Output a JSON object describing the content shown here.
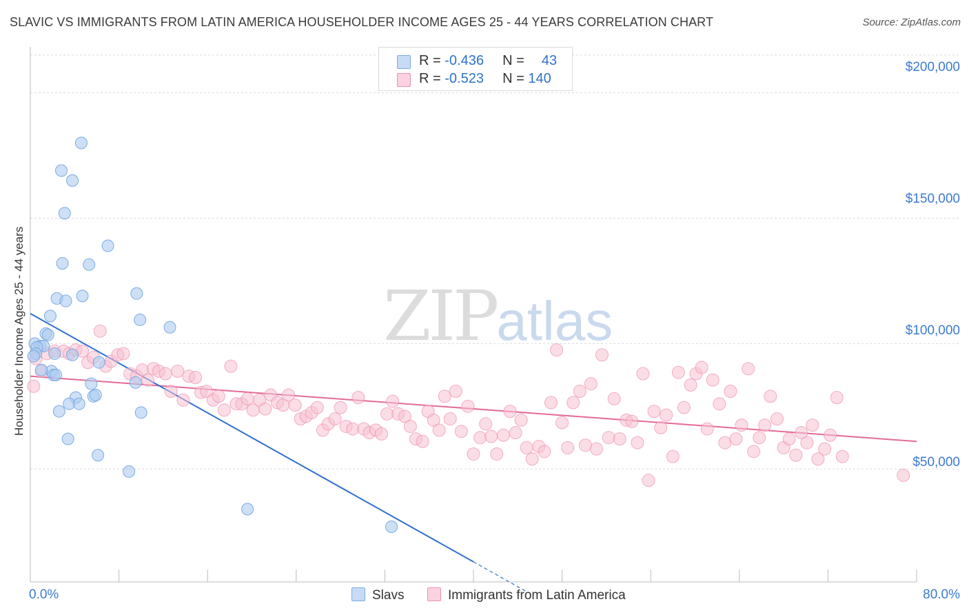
{
  "title": "SLAVIC VS IMMIGRANTS FROM LATIN AMERICA HOUSEHOLDER INCOME AGES 25 - 44 YEARS CORRELATION CHART",
  "source": "Source: ZipAtlas.com",
  "watermark": {
    "zip": "ZIP",
    "atlas": "atlas"
  },
  "legend": {
    "rows": [
      {
        "r_label": "R =",
        "r_value": "-0.436",
        "n_label": "N =",
        "n_value": "43",
        "color": "#aecbee"
      },
      {
        "r_label": "R =",
        "r_value": "-0.523",
        "n_label": "N =",
        "n_value": "140",
        "color": "#f8c1d1"
      }
    ]
  },
  "chart_data": {
    "type": "scatter",
    "title": "SLAVIC VS IMMIGRANTS FROM LATIN AMERICA HOUSEHOLDER INCOME AGES 25 - 44 YEARS CORRELATION CHART",
    "xlabel": "",
    "ylabel": "Householder Income Ages 25 - 44 years",
    "xlim": [
      0,
      80
    ],
    "ylim": [
      5000,
      215000
    ],
    "x_tick_labels": [
      "0.0%",
      "80.0%"
    ],
    "y_ticks": [
      50000,
      100000,
      150000,
      200000
    ],
    "y_tick_labels": [
      "$50,000",
      "$100,000",
      "$150,000",
      "$200,000"
    ],
    "grid": true,
    "legend_position": "top-center",
    "series": [
      {
        "name": "Slavs",
        "color": "#7aaae6",
        "fill": "#aecbee",
        "R": -0.436,
        "N": 43,
        "trend": {
          "x0": 0,
          "y0": 112000,
          "x1": 40,
          "y1": 13000,
          "dashed_to_x": 45
        },
        "points": [
          [
            4.6,
            180000
          ],
          [
            2.8,
            169000
          ],
          [
            3.8,
            165000
          ],
          [
            3.1,
            152000
          ],
          [
            7.0,
            139000
          ],
          [
            2.9,
            132000
          ],
          [
            5.3,
            131500
          ],
          [
            9.6,
            120000
          ],
          [
            4.7,
            119000
          ],
          [
            2.4,
            118000
          ],
          [
            3.2,
            117000
          ],
          [
            1.8,
            111000
          ],
          [
            9.9,
            109500
          ],
          [
            12.6,
            106500
          ],
          [
            1.4,
            104000
          ],
          [
            1.6,
            103500
          ],
          [
            0.4,
            100000
          ],
          [
            0.9,
            99000
          ],
          [
            1.2,
            99000
          ],
          [
            0.6,
            98500
          ],
          [
            0.5,
            96000
          ],
          [
            3.8,
            95500
          ],
          [
            1.9,
            89000
          ],
          [
            2.1,
            87500
          ],
          [
            2.3,
            87500
          ],
          [
            5.5,
            84000
          ],
          [
            9.5,
            84500
          ],
          [
            4.1,
            78500
          ],
          [
            5.7,
            79000
          ],
          [
            5.9,
            79500
          ],
          [
            3.5,
            76000
          ],
          [
            4.4,
            76000
          ],
          [
            2.6,
            73000
          ],
          [
            10.0,
            72500
          ],
          [
            3.4,
            62000
          ],
          [
            6.1,
            55500
          ],
          [
            8.9,
            49000
          ],
          [
            19.6,
            34000
          ],
          [
            32.6,
            27000
          ],
          [
            0.3,
            95000
          ],
          [
            2.2,
            96000
          ],
          [
            6.2,
            92500
          ],
          [
            1.0,
            89500
          ]
        ]
      },
      {
        "name": "Immigrants from Latin America",
        "color": "#ee8fae",
        "fill": "#f8c1d1",
        "R": -0.523,
        "N": 140,
        "trend": {
          "x0": 0,
          "y0": 87000,
          "x1": 80,
          "y1": 61000
        },
        "points": [
          [
            0.3,
            83000
          ],
          [
            0.5,
            94000
          ],
          [
            1.0,
            89000
          ],
          [
            1.5,
            96000
          ],
          [
            2.2,
            97000
          ],
          [
            3.0,
            97000
          ],
          [
            3.5,
            96000
          ],
          [
            4.1,
            97500
          ],
          [
            4.7,
            97000
          ],
          [
            5.2,
            92500
          ],
          [
            5.7,
            94500
          ],
          [
            6.3,
            105000
          ],
          [
            6.8,
            91000
          ],
          [
            7.3,
            93000
          ],
          [
            7.9,
            95500
          ],
          [
            8.4,
            96000
          ],
          [
            9.0,
            88000
          ],
          [
            9.6,
            87000
          ],
          [
            10.1,
            89500
          ],
          [
            10.6,
            85500
          ],
          [
            11.1,
            90000
          ],
          [
            11.6,
            89000
          ],
          [
            12.2,
            88000
          ],
          [
            12.7,
            81000
          ],
          [
            13.3,
            89000
          ],
          [
            13.8,
            77500
          ],
          [
            14.3,
            87000
          ],
          [
            14.9,
            86500
          ],
          [
            15.4,
            80500
          ],
          [
            15.9,
            81000
          ],
          [
            16.5,
            77500
          ],
          [
            17.0,
            79000
          ],
          [
            17.5,
            73500
          ],
          [
            18.1,
            91000
          ],
          [
            18.6,
            76000
          ],
          [
            19.1,
            76000
          ],
          [
            19.6,
            78000
          ],
          [
            20.1,
            73500
          ],
          [
            20.7,
            77500
          ],
          [
            21.2,
            74000
          ],
          [
            21.7,
            79500
          ],
          [
            22.3,
            76500
          ],
          [
            22.8,
            75500
          ],
          [
            23.3,
            79500
          ],
          [
            23.9,
            75500
          ],
          [
            24.4,
            70000
          ],
          [
            24.9,
            71000
          ],
          [
            25.4,
            72500
          ],
          [
            25.9,
            74500
          ],
          [
            26.4,
            65500
          ],
          [
            26.9,
            68000
          ],
          [
            27.5,
            70000
          ],
          [
            28.0,
            74500
          ],
          [
            28.5,
            67000
          ],
          [
            29.1,
            66000
          ],
          [
            29.6,
            78500
          ],
          [
            30.1,
            66000
          ],
          [
            30.6,
            64500
          ],
          [
            31.2,
            65500
          ],
          [
            31.7,
            64000
          ],
          [
            32.2,
            72000
          ],
          [
            32.7,
            77000
          ],
          [
            33.2,
            72000
          ],
          [
            33.8,
            71000
          ],
          [
            34.3,
            67000
          ],
          [
            34.8,
            62000
          ],
          [
            35.4,
            61000
          ],
          [
            35.9,
            73000
          ],
          [
            36.4,
            69500
          ],
          [
            36.9,
            65500
          ],
          [
            37.4,
            79000
          ],
          [
            37.9,
            70000
          ],
          [
            38.4,
            81000
          ],
          [
            38.9,
            65000
          ],
          [
            39.5,
            75000
          ],
          [
            40.0,
            56000
          ],
          [
            40.6,
            62500
          ],
          [
            41.1,
            68000
          ],
          [
            41.6,
            63000
          ],
          [
            42.1,
            56000
          ],
          [
            42.7,
            63500
          ],
          [
            43.3,
            73000
          ],
          [
            43.8,
            64500
          ],
          [
            44.3,
            69500
          ],
          [
            44.8,
            58500
          ],
          [
            45.3,
            54000
          ],
          [
            45.9,
            59000
          ],
          [
            46.4,
            57000
          ],
          [
            47.0,
            76500
          ],
          [
            47.5,
            97500
          ],
          [
            48.0,
            68500
          ],
          [
            48.5,
            58500
          ],
          [
            49.0,
            76500
          ],
          [
            49.6,
            81000
          ],
          [
            50.1,
            59500
          ],
          [
            50.6,
            84000
          ],
          [
            51.1,
            58000
          ],
          [
            51.6,
            95500
          ],
          [
            52.2,
            62500
          ],
          [
            52.7,
            78000
          ],
          [
            53.2,
            62000
          ],
          [
            53.8,
            69500
          ],
          [
            54.3,
            69000
          ],
          [
            54.8,
            60500
          ],
          [
            55.3,
            88000
          ],
          [
            55.8,
            45500
          ],
          [
            56.3,
            73000
          ],
          [
            56.9,
            66500
          ],
          [
            57.4,
            71500
          ],
          [
            58.0,
            55000
          ],
          [
            58.5,
            88500
          ],
          [
            59.0,
            74500
          ],
          [
            59.6,
            83500
          ],
          [
            60.1,
            88000
          ],
          [
            60.6,
            90500
          ],
          [
            61.1,
            66000
          ],
          [
            61.6,
            85500
          ],
          [
            62.2,
            76000
          ],
          [
            62.7,
            60500
          ],
          [
            63.2,
            81000
          ],
          [
            63.7,
            62000
          ],
          [
            64.2,
            67500
          ],
          [
            64.8,
            90000
          ],
          [
            65.3,
            57000
          ],
          [
            65.8,
            62500
          ],
          [
            66.3,
            67500
          ],
          [
            66.8,
            79000
          ],
          [
            67.4,
            70000
          ],
          [
            68.0,
            58500
          ],
          [
            68.5,
            62000
          ],
          [
            69.1,
            55500
          ],
          [
            69.6,
            64500
          ],
          [
            70.1,
            60500
          ],
          [
            70.6,
            67500
          ],
          [
            71.1,
            54000
          ],
          [
            71.7,
            58000
          ],
          [
            72.2,
            63500
          ],
          [
            72.8,
            78500
          ],
          [
            73.3,
            55000
          ],
          [
            78.8,
            47500
          ]
        ]
      }
    ]
  },
  "bottom_legend": [
    {
      "label": "Slavs",
      "color": "#aecbee"
    },
    {
      "label": "Immigrants from Latin America",
      "color": "#f8c1d1"
    }
  ]
}
